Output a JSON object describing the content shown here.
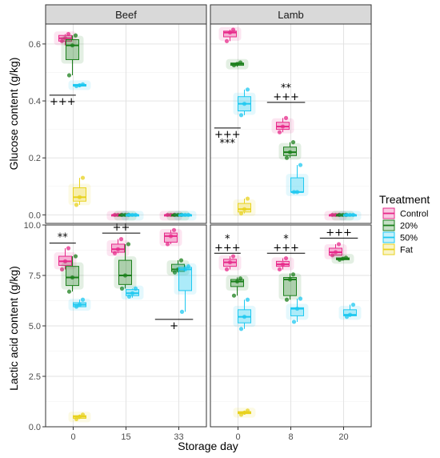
{
  "chart_data": {
    "type": "box",
    "xlabel": "Storage day",
    "legend": {
      "title": "Treatment",
      "position": "right",
      "entries": [
        {
          "name": "Control",
          "color": "#e7298a"
        },
        {
          "name": "20%",
          "color": "#1b7f1b"
        },
        {
          "name": "50%",
          "color": "#1ec8f0"
        },
        {
          "name": "Fat",
          "color": "#e8d21e"
        }
      ]
    },
    "columns": [
      {
        "label": "Beef",
        "x_ticks": [
          "0",
          "15",
          "33"
        ]
      },
      {
        "label": "Lamb",
        "x_ticks": [
          "0",
          "8",
          "20"
        ]
      }
    ],
    "rows": [
      {
        "ylabel": "Glucose content (g/kg)",
        "ylim": [
          -0.03,
          0.67
        ],
        "y_ticks": [
          0.0,
          0.2,
          0.4,
          0.6
        ],
        "y_tick_labels": [
          "0.0",
          "0.2",
          "0.4",
          "0.6"
        ]
      },
      {
        "ylabel": "Lactic acid content (g/kg)",
        "ylim": [
          0,
          10
        ],
        "y_ticks": [
          0,
          2.5,
          5,
          7.5,
          10
        ],
        "y_tick_labels": [
          "0.0",
          "2.5",
          "5.0",
          "7.5",
          "10.0"
        ]
      }
    ],
    "panels": [
      {
        "row": 0,
        "col": 0,
        "boxes": [
          {
            "x": 0,
            "group": "Control",
            "min": 0.595,
            "q1": 0.61,
            "median": 0.62,
            "q3": 0.63,
            "max": 0.635,
            "points": [
              0.61,
              0.62,
              0.635
            ]
          },
          {
            "x": 0,
            "group": "20%",
            "min": 0.49,
            "q1": 0.545,
            "median": 0.595,
            "q3": 0.615,
            "max": 0.63,
            "points": [
              0.49,
              0.595,
              0.63
            ]
          },
          {
            "x": 0,
            "group": "50%",
            "min": 0.448,
            "q1": 0.452,
            "median": 0.455,
            "q3": 0.458,
            "max": 0.46,
            "points": [
              0.452,
              0.455,
              0.458
            ]
          },
          {
            "x": 0,
            "group": "Fat",
            "min": 0.035,
            "q1": 0.048,
            "median": 0.062,
            "q3": 0.095,
            "max": 0.13,
            "points": [
              0.035,
              0.062,
              0.13
            ]
          },
          {
            "x": 1,
            "group": "Control",
            "min": 0,
            "q1": 0,
            "median": 0,
            "q3": 0,
            "max": 0,
            "points": [
              0,
              0,
              0
            ]
          },
          {
            "x": 1,
            "group": "20%",
            "min": 0,
            "q1": 0,
            "median": 0,
            "q3": 0,
            "max": 0,
            "points": [
              0,
              0,
              0
            ]
          },
          {
            "x": 1,
            "group": "50%",
            "min": 0,
            "q1": 0,
            "median": 0,
            "q3": 0,
            "max": 0,
            "points": [
              0,
              0,
              0
            ]
          },
          {
            "x": 2,
            "group": "Control",
            "min": 0,
            "q1": 0,
            "median": 0,
            "q3": 0,
            "max": 0,
            "points": [
              0,
              0,
              0
            ]
          },
          {
            "x": 2,
            "group": "20%",
            "min": 0,
            "q1": 0,
            "median": 0,
            "q3": 0,
            "max": 0,
            "points": [
              0,
              0,
              0
            ]
          },
          {
            "x": 2,
            "group": "50%",
            "min": 0,
            "q1": 0,
            "median": 0,
            "q3": 0,
            "max": 0,
            "points": [
              0,
              0,
              0
            ]
          }
        ],
        "annotations": [
          {
            "x_from": -0.45,
            "x_to": 0.05,
            "y": 0.42,
            "labels_below": [
              "+++"
            ],
            "labels_above": []
          }
        ]
      },
      {
        "row": 0,
        "col": 1,
        "boxes": [
          {
            "x": 0,
            "group": "Control",
            "min": 0.61,
            "q1": 0.625,
            "median": 0.64,
            "q3": 0.645,
            "max": 0.65,
            "points": [
              0.61,
              0.64,
              0.65
            ]
          },
          {
            "x": 0,
            "group": "20%",
            "min": 0.52,
            "q1": 0.525,
            "median": 0.53,
            "q3": 0.533,
            "max": 0.535,
            "points": [
              0.525,
              0.53,
              0.535
            ]
          },
          {
            "x": 0,
            "group": "50%",
            "min": 0.35,
            "q1": 0.365,
            "median": 0.39,
            "q3": 0.415,
            "max": 0.44,
            "points": [
              0.35,
              0.39,
              0.44
            ]
          },
          {
            "x": 0,
            "group": "Fat",
            "min": 0.005,
            "q1": 0.01,
            "median": 0.02,
            "q3": 0.04,
            "max": 0.057,
            "points": [
              0.005,
              0.02,
              0.057
            ]
          },
          {
            "x": 1,
            "group": "Control",
            "min": 0.29,
            "q1": 0.3,
            "median": 0.31,
            "q3": 0.325,
            "max": 0.34,
            "points": [
              0.29,
              0.31,
              0.34
            ]
          },
          {
            "x": 1,
            "group": "20%",
            "min": 0.2,
            "q1": 0.208,
            "median": 0.22,
            "q3": 0.238,
            "max": 0.255,
            "points": [
              0.2,
              0.22,
              0.255
            ]
          },
          {
            "x": 1,
            "group": "50%",
            "min": 0.08,
            "q1": 0.08,
            "median": 0.08,
            "q3": 0.13,
            "max": 0.175,
            "points": [
              0.08,
              0.08,
              0.175
            ]
          },
          {
            "x": 2,
            "group": "Control",
            "min": 0,
            "q1": 0,
            "median": 0,
            "q3": 0,
            "max": 0,
            "points": [
              0,
              0,
              0
            ]
          },
          {
            "x": 2,
            "group": "20%",
            "min": 0,
            "q1": 0,
            "median": 0,
            "q3": 0,
            "max": 0,
            "points": [
              0,
              0,
              0
            ]
          },
          {
            "x": 2,
            "group": "50%",
            "min": 0,
            "q1": 0,
            "median": 0,
            "q3": 0,
            "max": 0,
            "points": [
              0,
              0,
              0
            ]
          }
        ],
        "annotations": [
          {
            "x_from": -0.45,
            "x_to": 0.05,
            "y": 0.305,
            "labels_below": [
              "+++",
              "***"
            ],
            "labels_above": []
          },
          {
            "x_from": 0.55,
            "x_to": 1.27,
            "y": 0.395,
            "labels_below": [],
            "labels_above": [
              "**",
              "+++"
            ]
          }
        ]
      },
      {
        "row": 1,
        "col": 0,
        "boxes": [
          {
            "x": 0,
            "group": "Control",
            "min": 7.8,
            "q1": 8.0,
            "median": 8.2,
            "q3": 8.45,
            "max": 8.85,
            "points": [
              7.8,
              8.2,
              8.85
            ]
          },
          {
            "x": 0,
            "group": "20%",
            "min": 6.7,
            "q1": 7.0,
            "median": 7.4,
            "q3": 7.95,
            "max": 8.45,
            "points": [
              6.7,
              7.4,
              8.45
            ]
          },
          {
            "x": 0,
            "group": "50%",
            "min": 5.95,
            "q1": 5.95,
            "median": 6.05,
            "q3": 6.15,
            "max": 6.3,
            "points": [
              5.95,
              6.05,
              6.3
            ]
          },
          {
            "x": 0,
            "group": "Fat",
            "min": 0.38,
            "q1": 0.42,
            "median": 0.5,
            "q3": 0.55,
            "max": 0.6,
            "points": [
              0.38,
              0.5,
              0.6
            ]
          },
          {
            "x": 1,
            "group": "Control",
            "min": 8.6,
            "q1": 8.65,
            "median": 8.8,
            "q3": 9.05,
            "max": 9.3,
            "points": [
              8.6,
              8.8,
              9.3
            ]
          },
          {
            "x": 1,
            "group": "20%",
            "min": 6.85,
            "q1": 7.05,
            "median": 7.5,
            "q3": 8.25,
            "max": 9.05,
            "points": [
              6.85,
              7.5,
              9.05
            ]
          },
          {
            "x": 1,
            "group": "50%",
            "min": 6.4,
            "q1": 6.5,
            "median": 6.62,
            "q3": 6.8,
            "max": 6.85,
            "points": [
              6.45,
              6.62,
              6.85
            ]
          },
          {
            "x": 2,
            "group": "Control",
            "min": 9.05,
            "q1": 9.15,
            "median": 9.45,
            "q3": 9.6,
            "max": 9.75,
            "points": [
              9.05,
              9.45,
              9.75
            ]
          },
          {
            "x": 2,
            "group": "20%",
            "min": 7.65,
            "q1": 7.7,
            "median": 7.8,
            "q3": 8.05,
            "max": 8.25,
            "points": [
              7.65,
              7.8,
              8.25
            ]
          },
          {
            "x": 2,
            "group": "50%",
            "min": 5.7,
            "q1": 6.75,
            "median": 7.8,
            "q3": 7.9,
            "max": 8.0,
            "points": [
              5.7,
              7.8,
              7.95
            ]
          }
        ],
        "annotations": [
          {
            "x_from": -0.45,
            "x_to": 0.05,
            "y": 9.1,
            "labels_below": [],
            "labels_above": [
              "**"
            ]
          },
          {
            "x_from": 0.55,
            "x_to": 1.27,
            "y": 9.6,
            "labels_below": [],
            "labels_above": [
              "++"
            ]
          },
          {
            "x_from": 1.55,
            "x_to": 2.27,
            "y": 5.32,
            "labels_below": [
              "+"
            ],
            "labels_above": []
          }
        ]
      },
      {
        "row": 1,
        "col": 1,
        "boxes": [
          {
            "x": 0,
            "group": "Control",
            "min": 7.8,
            "q1": 7.95,
            "median": 8.15,
            "q3": 8.3,
            "max": 8.45,
            "points": [
              7.8,
              8.15,
              8.45
            ]
          },
          {
            "x": 0,
            "group": "20%",
            "min": 6.5,
            "q1": 6.95,
            "median": 7.2,
            "q3": 7.3,
            "max": 7.4,
            "points": [
              6.5,
              7.2,
              7.35
            ]
          },
          {
            "x": 0,
            "group": "50%",
            "min": 4.85,
            "q1": 5.15,
            "median": 5.45,
            "q3": 5.8,
            "max": 6.3,
            "points": [
              4.85,
              5.45,
              6.3
            ]
          },
          {
            "x": 0,
            "group": "Fat",
            "min": 0.6,
            "q1": 0.65,
            "median": 0.7,
            "q3": 0.75,
            "max": 0.8,
            "points": [
              0.6,
              0.7,
              0.8
            ]
          },
          {
            "x": 1,
            "group": "Control",
            "min": 7.8,
            "q1": 7.95,
            "median": 8.05,
            "q3": 8.2,
            "max": 8.35,
            "points": [
              7.8,
              8.05,
              8.35
            ]
          },
          {
            "x": 1,
            "group": "20%",
            "min": 6.3,
            "q1": 6.5,
            "median": 7.3,
            "q3": 7.4,
            "max": 7.6,
            "points": [
              6.3,
              7.3,
              7.55
            ]
          },
          {
            "x": 1,
            "group": "50%",
            "min": 5.2,
            "q1": 5.5,
            "median": 5.85,
            "q3": 5.9,
            "max": 6.35,
            "points": [
              5.2,
              5.85,
              6.35
            ]
          },
          {
            "x": 2,
            "group": "Control",
            "min": 8.5,
            "q1": 8.5,
            "median": 8.65,
            "q3": 8.85,
            "max": 9.05,
            "points": [
              8.5,
              8.65,
              9.05
            ]
          },
          {
            "x": 2,
            "group": "20%",
            "min": 8.25,
            "q1": 8.28,
            "median": 8.33,
            "q3": 8.37,
            "max": 8.4,
            "points": [
              8.28,
              8.33,
              8.38
            ]
          },
          {
            "x": 2,
            "group": "50%",
            "min": 5.45,
            "q1": 5.5,
            "median": 5.55,
            "q3": 5.8,
            "max": 6.05,
            "points": [
              5.45,
              5.55,
              6.05
            ]
          }
        ],
        "annotations": [
          {
            "x_from": -0.45,
            "x_to": 0.05,
            "y": 8.6,
            "labels_below": [],
            "labels_above": [
              "*",
              "+++"
            ]
          },
          {
            "x_from": 0.55,
            "x_to": 1.27,
            "y": 8.6,
            "labels_below": [],
            "labels_above": [
              "*",
              "+++"
            ]
          },
          {
            "x_from": 1.55,
            "x_to": 2.27,
            "y": 9.35,
            "labels_below": [],
            "labels_above": [
              "+++"
            ]
          }
        ]
      }
    ]
  }
}
